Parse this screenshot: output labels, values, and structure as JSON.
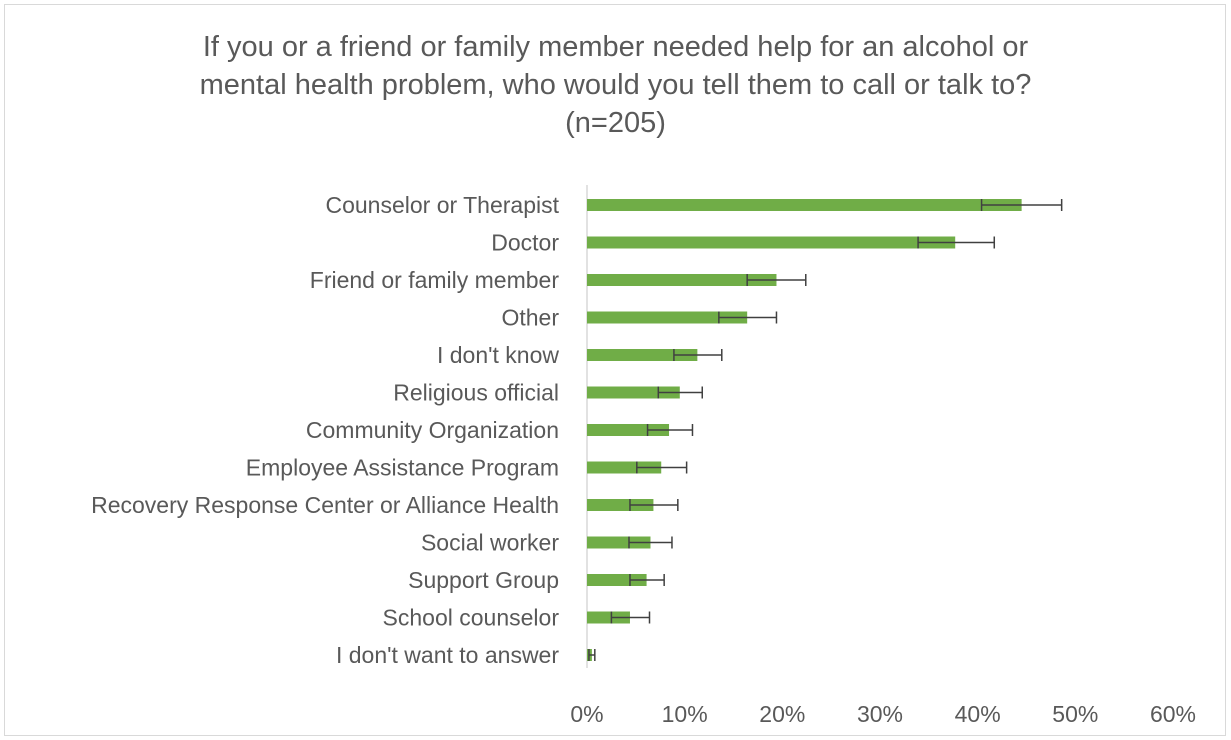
{
  "chart_data": {
    "type": "bar",
    "orientation": "horizontal",
    "title_lines": [
      "If you or a friend or family member needed help for an alcohol or",
      "mental health problem, who would you tell them to call or talk to?",
      "(n=205)"
    ],
    "categories": [
      "Counselor or Therapist",
      "Doctor",
      "Friend or family member",
      "Other",
      "I don't know",
      "Religious official",
      "Community Organization",
      "Employee Assistance Program",
      "Recovery Response Center or Alliance Health",
      "Social worker",
      "Support Group",
      "School counselor",
      "I don't want to answer"
    ],
    "values": [
      44.5,
      37.7,
      19.4,
      16.4,
      11.3,
      9.5,
      8.4,
      7.6,
      6.8,
      6.5,
      6.1,
      4.4,
      0.5
    ],
    "error_low": [
      40.4,
      33.9,
      16.4,
      13.5,
      8.9,
      7.3,
      6.2,
      5.1,
      4.4,
      4.3,
      4.4,
      2.5,
      0.2
    ],
    "error_high": [
      48.6,
      41.7,
      22.4,
      19.4,
      13.8,
      11.8,
      10.8,
      10.2,
      9.3,
      8.7,
      7.9,
      6.4,
      0.8
    ],
    "xlim": [
      0,
      60
    ],
    "xticks": [
      "0%",
      "10%",
      "20%",
      "30%",
      "40%",
      "50%",
      "60%"
    ],
    "xtick_values": [
      0,
      10,
      20,
      30,
      40,
      50,
      60
    ],
    "bar_color": "#70ad47",
    "error_bar_color": "#404040",
    "axis_color": "#d9d9d9",
    "text_color": "#595959",
    "grid": false,
    "legend": "none"
  }
}
